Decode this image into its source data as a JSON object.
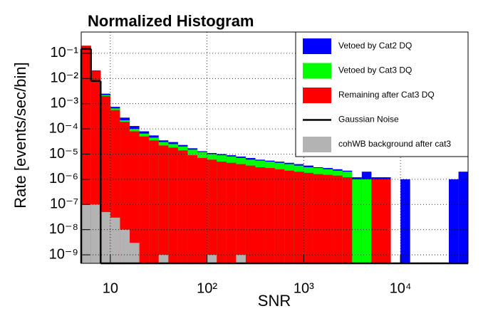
{
  "chart_data": {
    "type": "histogram",
    "title": "Normalized Histogram",
    "x_label": "SNR",
    "y_label": "Rate [events/sec/bin]",
    "xscale": "log",
    "yscale": "log",
    "grid": true,
    "legend": "top-right",
    "xlim": [
      5,
      50000
    ],
    "ylim": [
      4.6e-10,
      0.7
    ],
    "xticks": [
      10,
      {
        "value": 100,
        "label": "10²"
      },
      {
        "value": 1000,
        "label": "10³"
      },
      {
        "value": 10000,
        "label": "10⁴"
      }
    ],
    "yticks": [
      {
        "value": 1e-09,
        "label": "10⁻⁹"
      },
      {
        "value": 1e-08,
        "label": "10⁻⁸"
      },
      {
        "value": 1e-07,
        "label": "10⁻⁷"
      },
      {
        "value": 1e-06,
        "label": "10⁻⁶"
      },
      {
        "value": 1e-05,
        "label": "10⁻⁵"
      },
      {
        "value": 0.0001,
        "label": "10⁻⁴"
      },
      {
        "value": 0.001,
        "label": "10⁻³"
      },
      {
        "value": 0.01,
        "label": "10⁻²"
      },
      {
        "value": 0.1,
        "label": "10⁻¹"
      }
    ],
    "bins": [
      5,
      6.31,
      7.94,
      10,
      12.59,
      15.85,
      19.95,
      25.12,
      31.62,
      39.81,
      50.12,
      63.1,
      79.43,
      100,
      125.9,
      158.5,
      199.5,
      251.2,
      316.2,
      398.1,
      501.2,
      631,
      794.3,
      1000,
      1259,
      1585,
      1995,
      2512,
      3162,
      3981,
      5012,
      6310,
      7943,
      10000,
      12589,
      15849,
      19953,
      25119,
      31623,
      39811,
      50000
    ],
    "series": [
      {
        "name": "Vetoed by Cat2 DQ",
        "color": "#0000ff",
        "style": "bar",
        "values": [
          0.2,
          0.021,
          0.0025,
          0.00075,
          0.00028,
          0.00013,
          8e-05,
          5.5e-05,
          3.5e-05,
          3e-05,
          2.3e-05,
          1.7e-05,
          1.3e-05,
          1.1e-05,
          1e-05,
          9e-06,
          8e-06,
          7e-06,
          6e-06,
          5.5e-06,
          5e-06,
          4.5e-06,
          4e-06,
          3.5e-06,
          3e-06,
          2.8e-06,
          2.5e-06,
          2.2e-06,
          1.2e-06,
          2e-06,
          1.2e-06,
          1.2e-06,
          0,
          1e-06,
          0,
          0,
          0,
          0,
          1e-06,
          2e-06
        ]
      },
      {
        "name": "Vetoed by Cat3 DQ",
        "color": "#00ff00",
        "style": "bar",
        "values": [
          0.2,
          0.02,
          0.0022,
          0.00065,
          0.00022,
          0.0001,
          6.5e-05,
          4.5e-05,
          3e-05,
          2.5e-05,
          2e-05,
          1.5e-05,
          1.2e-05,
          1e-05,
          9e-06,
          8e-06,
          7e-06,
          6e-06,
          5.5e-06,
          5e-06,
          4.5e-06,
          4e-06,
          3.5e-06,
          3e-06,
          2.8e-06,
          2.5e-06,
          2.2e-06,
          2e-06,
          1e-06,
          1e-06,
          1e-06,
          1e-06,
          0,
          0,
          0,
          0,
          0,
          0,
          0,
          0
        ]
      },
      {
        "name": "Remaining after Cat3 DQ",
        "color": "#ff0000",
        "style": "bar",
        "values": [
          0.2,
          0.02,
          0.002,
          0.00056,
          0.00019,
          8e-05,
          5e-05,
          3.5e-05,
          2.2e-05,
          1.8e-05,
          1.4e-05,
          9e-06,
          7e-06,
          6e-06,
          5e-06,
          4.5e-06,
          4e-06,
          3.5e-06,
          3e-06,
          2.8e-06,
          2.5e-06,
          2.2e-06,
          2e-06,
          1.8e-06,
          1.6e-06,
          1.5e-06,
          1.4e-06,
          1.2e-06,
          0,
          0,
          1e-06,
          1e-06,
          0,
          0,
          0,
          0,
          0,
          0,
          0,
          0
        ]
      },
      {
        "name": "Gaussian Noise",
        "color": "#000000",
        "style": "step",
        "values": [
          0.15,
          0.008,
          0,
          0,
          0,
          0,
          0,
          0,
          0,
          0,
          0,
          0,
          0,
          0,
          0,
          0,
          0,
          0,
          0,
          0,
          0,
          0,
          0,
          0,
          0,
          0,
          0,
          0,
          0,
          0,
          0,
          0,
          0,
          0,
          0,
          0,
          0,
          0,
          0,
          0
        ]
      },
      {
        "name": "cohWB background after cat3",
        "color": "#b3b3b3",
        "style": "bar",
        "values": [
          1e-07,
          1e-07,
          5e-08,
          3e-08,
          1e-08,
          3e-09,
          0,
          0,
          1e-09,
          0,
          0,
          0,
          0,
          1e-09,
          0,
          0,
          1e-09,
          0,
          0,
          0,
          0,
          0,
          0,
          0,
          0,
          0,
          0,
          0,
          0,
          0,
          0,
          0,
          0,
          0,
          0,
          0,
          0,
          0,
          0,
          0
        ]
      }
    ]
  }
}
